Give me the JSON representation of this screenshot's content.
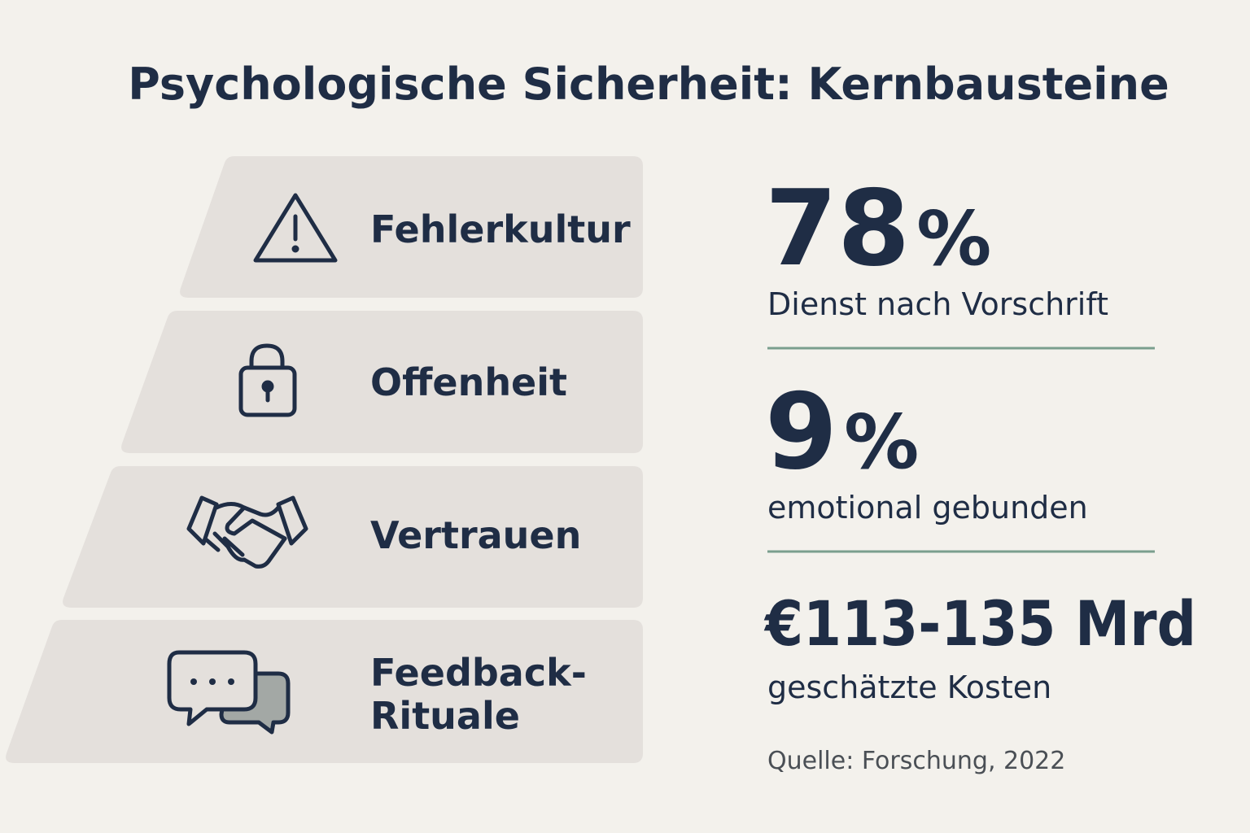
{
  "title": "Psychologische Sicherheit: Kernbausteine",
  "blocks": [
    {
      "label": [
        "Fehlerkultur"
      ]
    },
    {
      "label": [
        "Offenheit"
      ]
    },
    {
      "label": [
        "Vertrauen"
      ]
    },
    {
      "label": [
        "Feedback-",
        "Rituale"
      ]
    }
  ],
  "stats": [
    {
      "number": "78",
      "unit": "%",
      "caption": "Dienst nach Vorschrift"
    },
    {
      "number": "9",
      "unit": "%",
      "caption": "emotional gebunden"
    },
    {
      "number": "€113-135 Mrd",
      "caption": "geschätzte Kosten"
    }
  ],
  "source": "Quelle: Forschung, 2022"
}
